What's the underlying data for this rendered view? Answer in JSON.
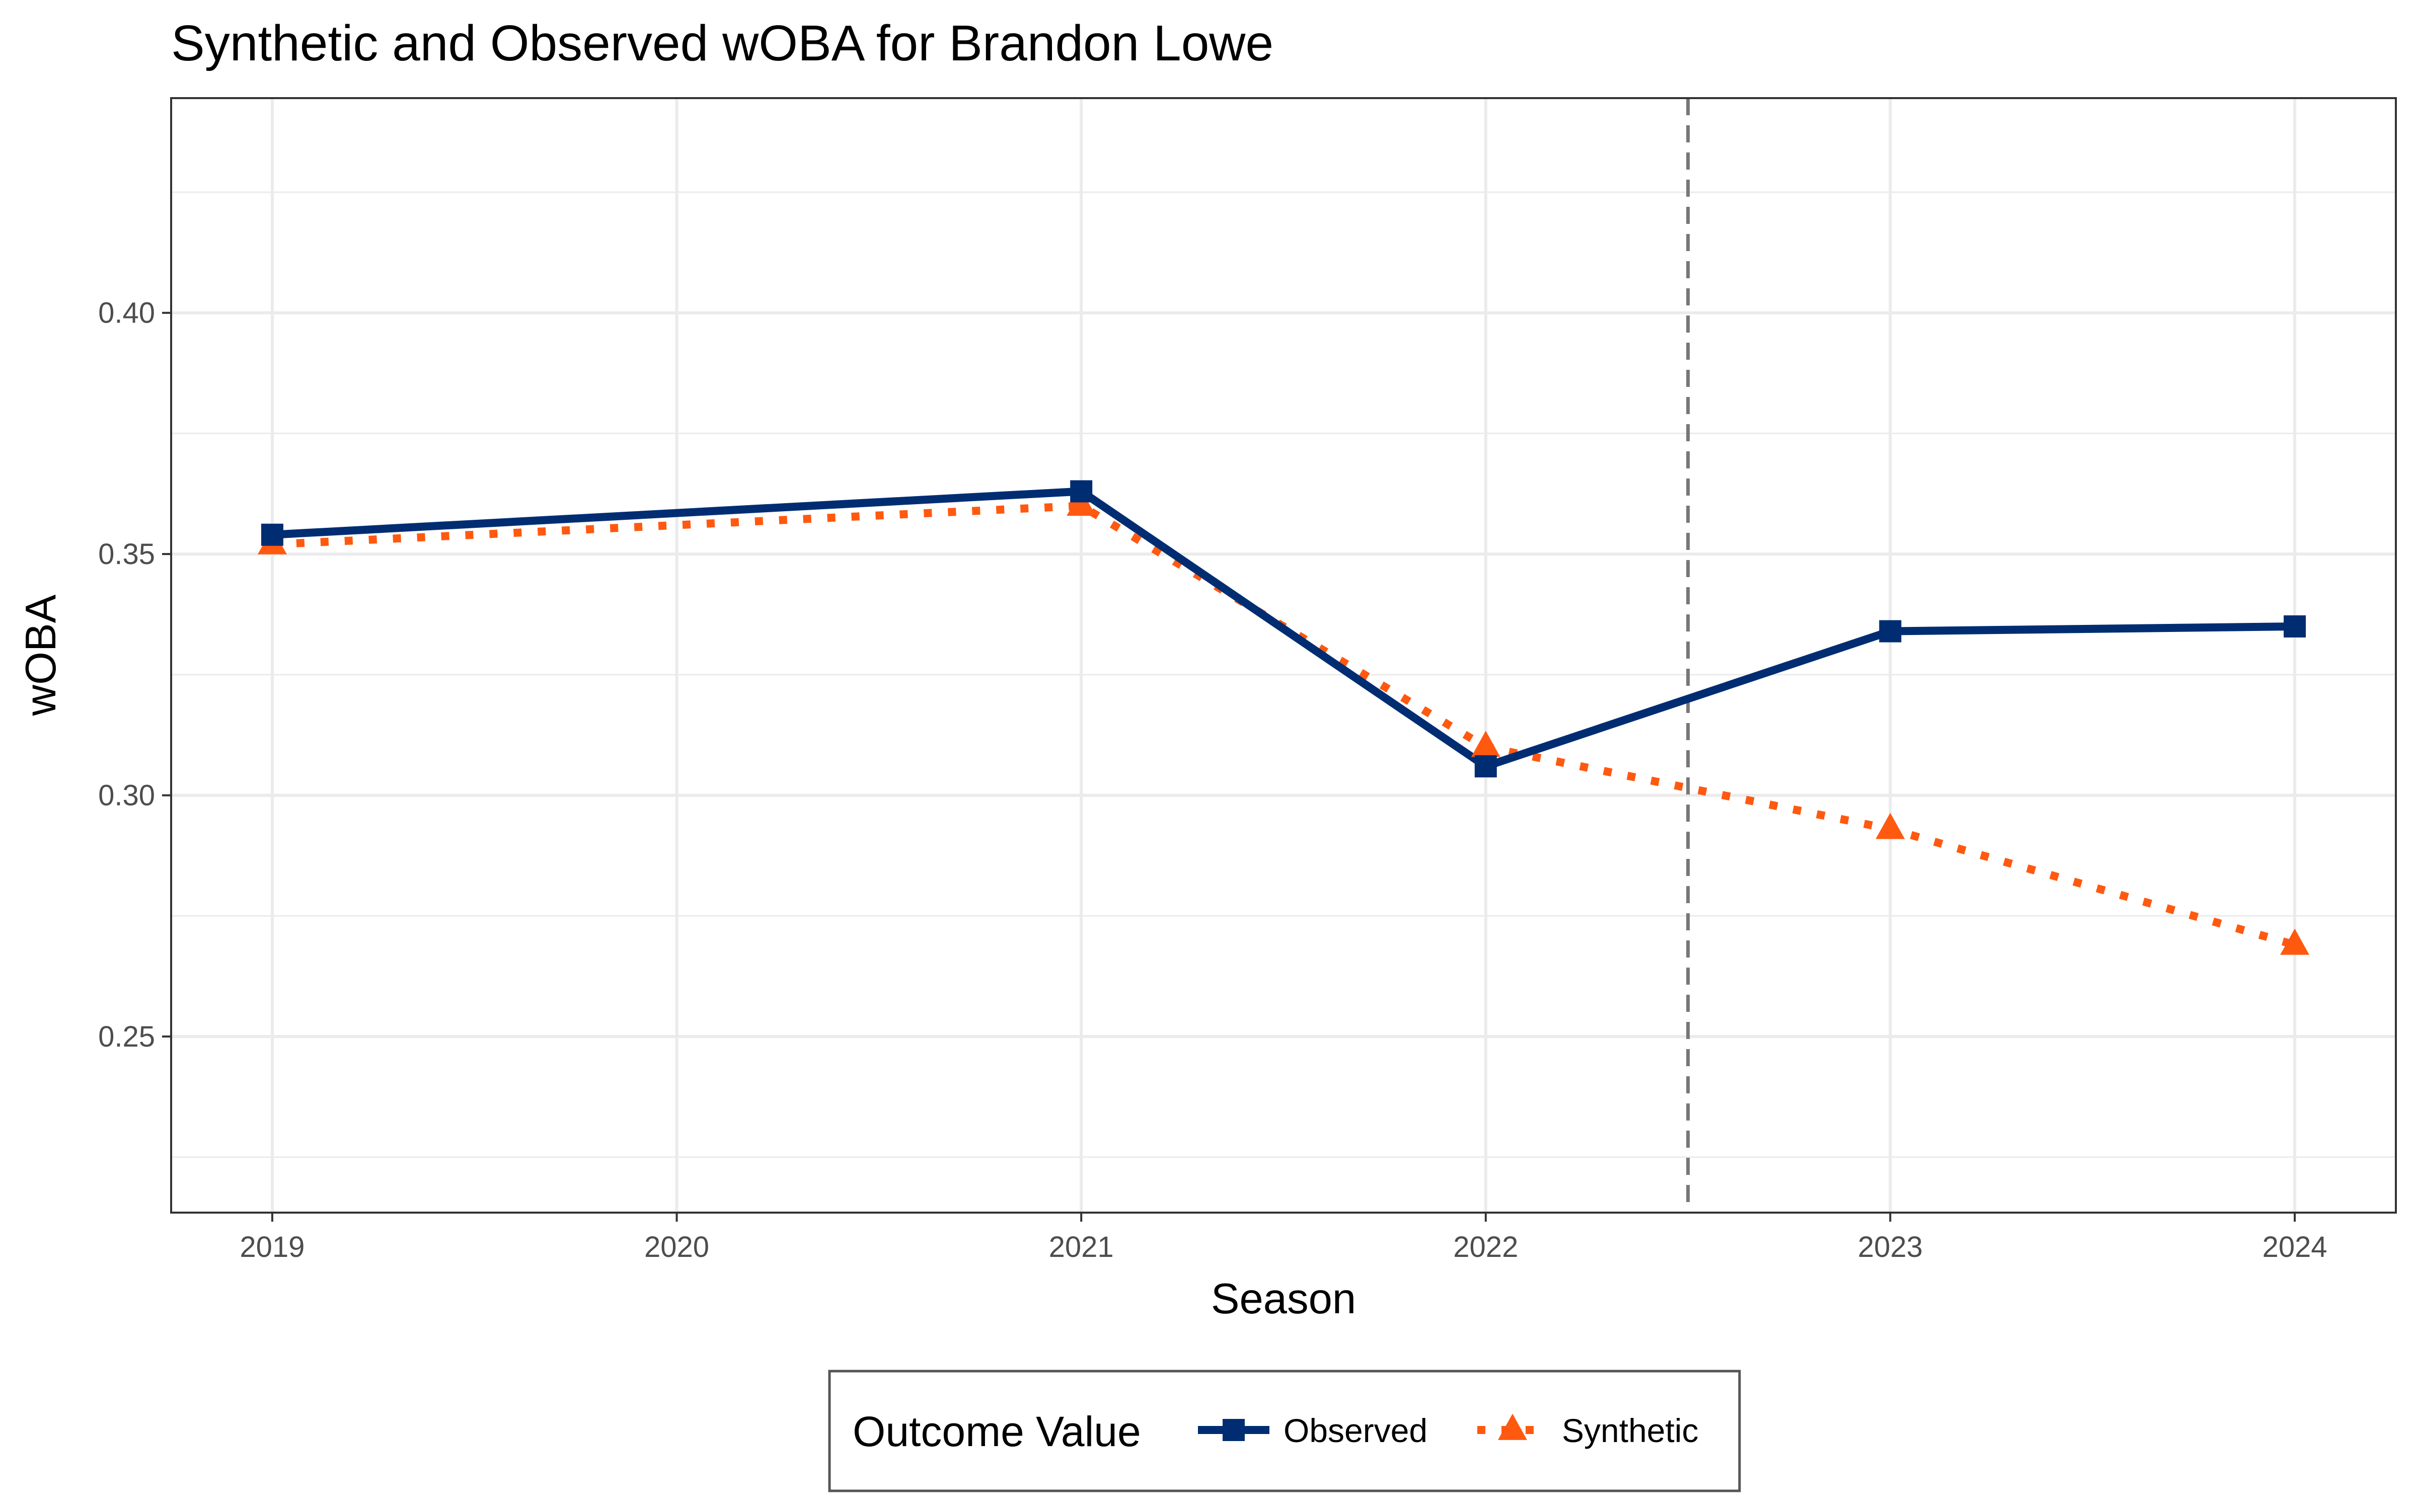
{
  "chart_data": {
    "type": "line",
    "title": "Synthetic and Observed wOBA for Brandon Lowe",
    "xlabel": "Season",
    "ylabel": "wOBA",
    "x": [
      2019,
      2020,
      2021,
      2022,
      2023,
      2024
    ],
    "x_tick_labels": [
      "2019",
      "2020",
      "2021",
      "2022",
      "2023",
      "2024"
    ],
    "y_tick_labels": [
      "0.25",
      "0.30",
      "0.35",
      "0.40"
    ],
    "y_ticks": [
      0.25,
      0.3,
      0.35,
      0.4
    ],
    "xlim": [
      2018.75,
      2024.25
    ],
    "ylim": [
      0.2135,
      0.4445
    ],
    "grid": true,
    "intervention_x": 2022.5,
    "legend": {
      "title": "Outcome Value",
      "placement": "bottom",
      "entries": [
        "Observed",
        "Synthetic"
      ]
    },
    "series": [
      {
        "name": "Observed",
        "color": "#002d72",
        "line_style": "solid",
        "marker": "square",
        "points": [
          {
            "x": 2019,
            "y": 0.354
          },
          {
            "x": 2021,
            "y": 0.363
          },
          {
            "x": 2022,
            "y": 0.306
          },
          {
            "x": 2023,
            "y": 0.334
          },
          {
            "x": 2024,
            "y": 0.335
          }
        ]
      },
      {
        "name": "Synthetic",
        "color": "#ff5910",
        "line_style": "dotted",
        "marker": "triangle",
        "points": [
          {
            "x": 2019,
            "y": 0.352
          },
          {
            "x": 2021,
            "y": 0.36
          },
          {
            "x": 2022,
            "y": 0.31
          },
          {
            "x": 2023,
            "y": 0.293
          },
          {
            "x": 2024,
            "y": 0.269
          }
        ]
      }
    ]
  }
}
